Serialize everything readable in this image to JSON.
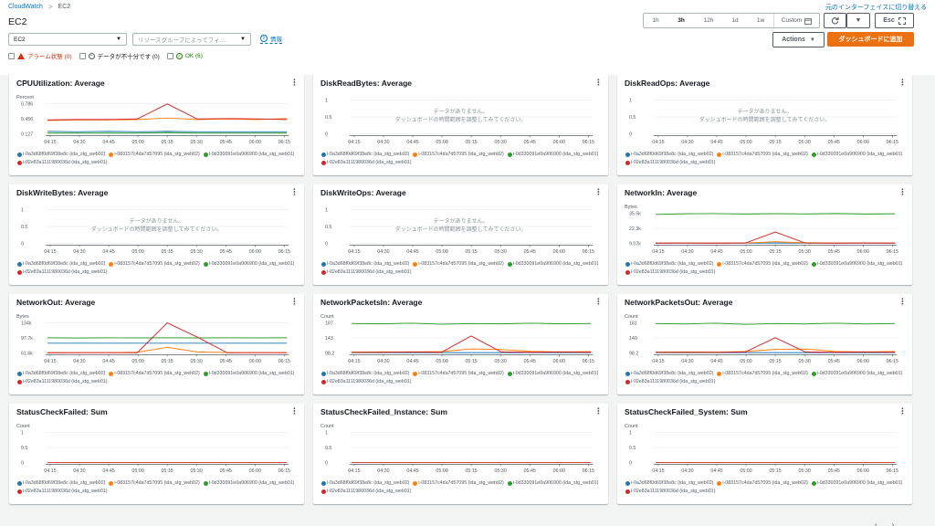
{
  "breadcrumb": {
    "root": "CloudWatch",
    "current": "EC2"
  },
  "header": {
    "switch_link": "元のインターフェイスに切り替える",
    "title": "EC2"
  },
  "time_range": {
    "options": [
      "1h",
      "3h",
      "12h",
      "1d",
      "1w"
    ],
    "selected": "3h",
    "custom_label": "Custom"
  },
  "toolbar": {
    "refresh_icon": "refresh-icon",
    "esc_label": "Esc",
    "actions_label": "Actions",
    "add_dashboard_label": "ダッシュボードに追加"
  },
  "filters_bar": {
    "service_value": "EC2",
    "resource_group_placeholder": "リソースグループによってフィ...",
    "info_label": "情報"
  },
  "filters": {
    "alarm": "アラーム状態 (0)",
    "insufficient": "データが不十分です (0)",
    "ok": "OK (6)"
  },
  "colors": {
    "blue": "#1f77b4",
    "orange": "#ff7f0e",
    "green": "#2ca02c",
    "red": "#d62728",
    "accent": "#ec7211"
  },
  "legend": [
    {
      "label": "i-0a3d68f0d69f38e8c (ida_stg_web02)",
      "color": "#1f77b4"
    },
    {
      "label": "i-083157c4da7d57095 (ida_stg_web02)",
      "color": "#ff7f0e"
    },
    {
      "label": "i-0d330091e0a906900 (ida_stg_web01)",
      "color": "#2ca02c"
    },
    {
      "label": "i-02e83a1111980036d (ida_stg_web01)",
      "color": "#d62728"
    }
  ],
  "x_ticks": [
    "04:15",
    "04:30",
    "04:45",
    "05:00",
    "05:15",
    "05:30",
    "05:45",
    "06:00",
    "06:15"
  ],
  "no_data_title": "データがありません。",
  "no_data_hint": "ダッシュボードの時間範囲を調整してみてください。",
  "widgets": [
    {
      "title": "CPUUtilization: Average",
      "unit": "Percent",
      "yticks": [
        "0.786",
        "0.456",
        "0.127"
      ],
      "nodata": false
    },
    {
      "title": "DiskReadBytes: Average",
      "unit": "",
      "yticks": [
        "1",
        "0.5",
        "0"
      ],
      "nodata": true
    },
    {
      "title": "DiskReadOps: Average",
      "unit": "",
      "yticks": [
        "1",
        "0.5",
        "0"
      ],
      "nodata": true
    },
    {
      "title": "DiskWriteBytes: Average",
      "unit": "",
      "yticks": [
        "1",
        "0.5",
        "0"
      ],
      "nodata": true
    },
    {
      "title": "DiskWriteOps: Average",
      "unit": "",
      "yticks": [
        "1",
        "0.5",
        "0"
      ],
      "nodata": true
    },
    {
      "title": "NetworkIn: Average",
      "unit": "Bytes",
      "yticks": [
        "35.5k",
        "22.3k",
        "9.07k"
      ],
      "nodata": false
    },
    {
      "title": "NetworkOut: Average",
      "unit": "Bytes",
      "yticks": [
        "134k",
        "97.7k",
        "61.6k"
      ],
      "nodata": false
    },
    {
      "title": "NetworkPacketsIn: Average",
      "unit": "Count",
      "yticks": [
        "187",
        "143",
        "98.2"
      ],
      "nodata": false
    },
    {
      "title": "NetworkPacketsOut: Average",
      "unit": "Count",
      "yticks": [
        "181",
        "140",
        "98.2"
      ],
      "nodata": false
    },
    {
      "title": "StatusCheckFailed: Sum",
      "unit": "Count",
      "yticks": [
        "1",
        "0.5",
        "0"
      ],
      "nodata": false
    },
    {
      "title": "StatusCheckFailed_Instance: Sum",
      "unit": "Count",
      "yticks": [
        "1",
        "0.5",
        "0"
      ],
      "nodata": false
    },
    {
      "title": "StatusCheckFailed_System: Sum",
      "unit": "Count",
      "yticks": [
        "1",
        "0.5",
        "0"
      ],
      "nodata": false
    }
  ],
  "chart_data": [
    {
      "type": "line",
      "title": "CPUUtilization: Average",
      "ylabel": "Percent",
      "ylim": [
        0.127,
        0.786
      ],
      "x": [
        "04:15",
        "04:30",
        "04:45",
        "05:00",
        "05:15",
        "05:30",
        "05:45",
        "06:00",
        "06:15"
      ],
      "series": [
        {
          "name": "i-0a3d68f0d69f38e8c (ida_stg_web02)",
          "values": [
            0.18,
            0.17,
            0.18,
            0.17,
            0.18,
            0.17,
            0.17,
            0.17,
            0.17
          ]
        },
        {
          "name": "i-083157c4da7d57095 (ida_stg_web02)",
          "values": [
            0.42,
            0.43,
            0.43,
            0.44,
            0.47,
            0.44,
            0.45,
            0.44,
            0.46
          ]
        },
        {
          "name": "i-0d330091e0a906900 (ida_stg_web01)",
          "values": [
            0.14,
            0.14,
            0.14,
            0.14,
            0.15,
            0.14,
            0.14,
            0.14,
            0.14
          ]
        },
        {
          "name": "i-02e83a1111980036d (ida_stg_web01)",
          "values": [
            0.43,
            0.44,
            0.44,
            0.45,
            0.78,
            0.45,
            0.46,
            0.45,
            0.44
          ]
        }
      ]
    },
    {
      "type": "line",
      "title": "NetworkIn: Average",
      "ylabel": "Bytes",
      "ylim": [
        9070,
        35500
      ],
      "x": [
        "04:15",
        "04:30",
        "04:45",
        "05:00",
        "05:15",
        "05:30",
        "05:45",
        "06:00",
        "06:15"
      ],
      "series": [
        {
          "name": "i-0a3d68f0d69f38e8c (ida_stg_web02)",
          "values": [
            9200,
            9200,
            9200,
            9200,
            9300,
            9200,
            9200,
            9200,
            9200
          ]
        },
        {
          "name": "i-083157c4da7d57095 (ida_stg_web02)",
          "values": [
            9300,
            9400,
            9300,
            9400,
            10500,
            9500,
            9400,
            9400,
            9400
          ]
        },
        {
          "name": "i-0d330091e0a906900 (ida_stg_web01)",
          "values": [
            34500,
            35000,
            35200,
            34800,
            35100,
            34900,
            35300,
            34800,
            35000
          ]
        },
        {
          "name": "i-02e83a1111980036d (ida_stg_web01)",
          "values": [
            9200,
            9300,
            9200,
            9300,
            19000,
            9300,
            9200,
            9300,
            9200
          ]
        }
      ]
    },
    {
      "type": "line",
      "title": "NetworkOut: Average",
      "ylabel": "Bytes",
      "ylim": [
        61600,
        134000
      ],
      "x": [
        "04:15",
        "04:30",
        "04:45",
        "05:00",
        "05:15",
        "05:30",
        "05:45",
        "06:00",
        "06:15"
      ],
      "series": [
        {
          "name": "i-0a3d68f0d69f38e8c (ida_stg_web02)",
          "values": [
            85000,
            85000,
            85000,
            85000,
            85000,
            85000,
            85000,
            85000,
            85000
          ]
        },
        {
          "name": "i-083157c4da7d57095 (ida_stg_web02)",
          "values": [
            62000,
            62500,
            62000,
            63000,
            75000,
            64000,
            62500,
            62000,
            62500
          ]
        },
        {
          "name": "i-0d330091e0a906900 (ida_stg_web01)",
          "values": [
            98000,
            97500,
            98000,
            97700,
            98000,
            97800,
            98000,
            97700,
            98000
          ]
        },
        {
          "name": "i-02e83a1111980036d (ida_stg_web01)",
          "values": [
            62000,
            62000,
            62500,
            62000,
            134000,
            100000,
            62000,
            62500,
            62000
          ]
        }
      ]
    },
    {
      "type": "line",
      "title": "NetworkPacketsIn: Average",
      "ylabel": "Count",
      "ylim": [
        98.2,
        187
      ],
      "x": [
        "04:15",
        "04:30",
        "04:45",
        "05:00",
        "05:15",
        "05:30",
        "05:45",
        "06:00",
        "06:15"
      ],
      "series": [
        {
          "name": "i-0a3d68f0d69f38e8c (ida_stg_web02)",
          "values": [
            99,
            99,
            99,
            99,
            99,
            99,
            99,
            99,
            99
          ]
        },
        {
          "name": "i-083157c4da7d57095 (ida_stg_web02)",
          "values": [
            100,
            101,
            101,
            102,
            110,
            108,
            103,
            101,
            102
          ]
        },
        {
          "name": "i-0d330091e0a906900 (ida_stg_web01)",
          "values": [
            185,
            184,
            186,
            183,
            185,
            184,
            186,
            184,
            185
          ]
        },
        {
          "name": "i-02e83a1111980036d (ida_stg_web01)",
          "values": [
            100,
            100,
            101,
            100,
            148,
            101,
            100,
            101,
            100
          ]
        }
      ]
    },
    {
      "type": "line",
      "title": "NetworkPacketsOut: Average",
      "ylabel": "Count",
      "ylim": [
        98.2,
        181
      ],
      "x": [
        "04:15",
        "04:30",
        "04:45",
        "05:00",
        "05:15",
        "05:30",
        "05:45",
        "06:00",
        "06:15"
      ],
      "series": [
        {
          "name": "i-0a3d68f0d69f38e8c (ida_stg_web02)",
          "values": [
            99,
            99,
            99,
            99,
            99,
            99,
            99,
            99,
            99
          ]
        },
        {
          "name": "i-083157c4da7d57095 (ida_stg_web02)",
          "values": [
            100,
            101,
            100,
            102,
            108,
            109,
            102,
            101,
            102
          ]
        },
        {
          "name": "i-0d330091e0a906900 (ida_stg_web01)",
          "values": [
            179,
            178,
            180,
            177,
            179,
            178,
            180,
            178,
            179
          ]
        },
        {
          "name": "i-02e83a1111980036d (ida_stg_web01)",
          "values": [
            100,
            100,
            100,
            101,
            140,
            101,
            100,
            101,
            100
          ]
        }
      ]
    },
    {
      "type": "line",
      "title": "StatusCheckFailed: Sum",
      "ylabel": "Count",
      "ylim": [
        0,
        1
      ],
      "x": [
        "04:15",
        "04:30",
        "04:45",
        "05:00",
        "05:15",
        "05:30",
        "05:45",
        "06:00",
        "06:15"
      ],
      "series": [
        {
          "name": "i-02e83a1111980036d (ida_stg_web01)",
          "values": [
            0,
            0,
            0,
            0,
            0,
            0,
            0,
            0,
            0
          ]
        }
      ]
    },
    {
      "type": "line",
      "title": "StatusCheckFailed_Instance: Sum",
      "ylabel": "Count",
      "ylim": [
        0,
        1
      ],
      "x": [
        "04:15",
        "04:30",
        "04:45",
        "05:00",
        "05:15",
        "05:30",
        "05:45",
        "06:00",
        "06:15"
      ],
      "series": [
        {
          "name": "i-02e83a1111980036d (ida_stg_web01)",
          "values": [
            0,
            0,
            0,
            0,
            0,
            0,
            0,
            0,
            0
          ]
        }
      ]
    },
    {
      "type": "line",
      "title": "StatusCheckFailed_System: Sum",
      "ylabel": "Count",
      "ylim": [
        0,
        1
      ],
      "x": [
        "04:15",
        "04:30",
        "04:45",
        "05:00",
        "05:15",
        "05:30",
        "05:45",
        "06:00",
        "06:15"
      ],
      "series": [
        {
          "name": "i-02e83a1111980036d (ida_stg_web01)",
          "values": [
            0,
            0,
            0,
            0,
            0,
            0,
            0,
            0,
            0
          ]
        }
      ]
    }
  ]
}
